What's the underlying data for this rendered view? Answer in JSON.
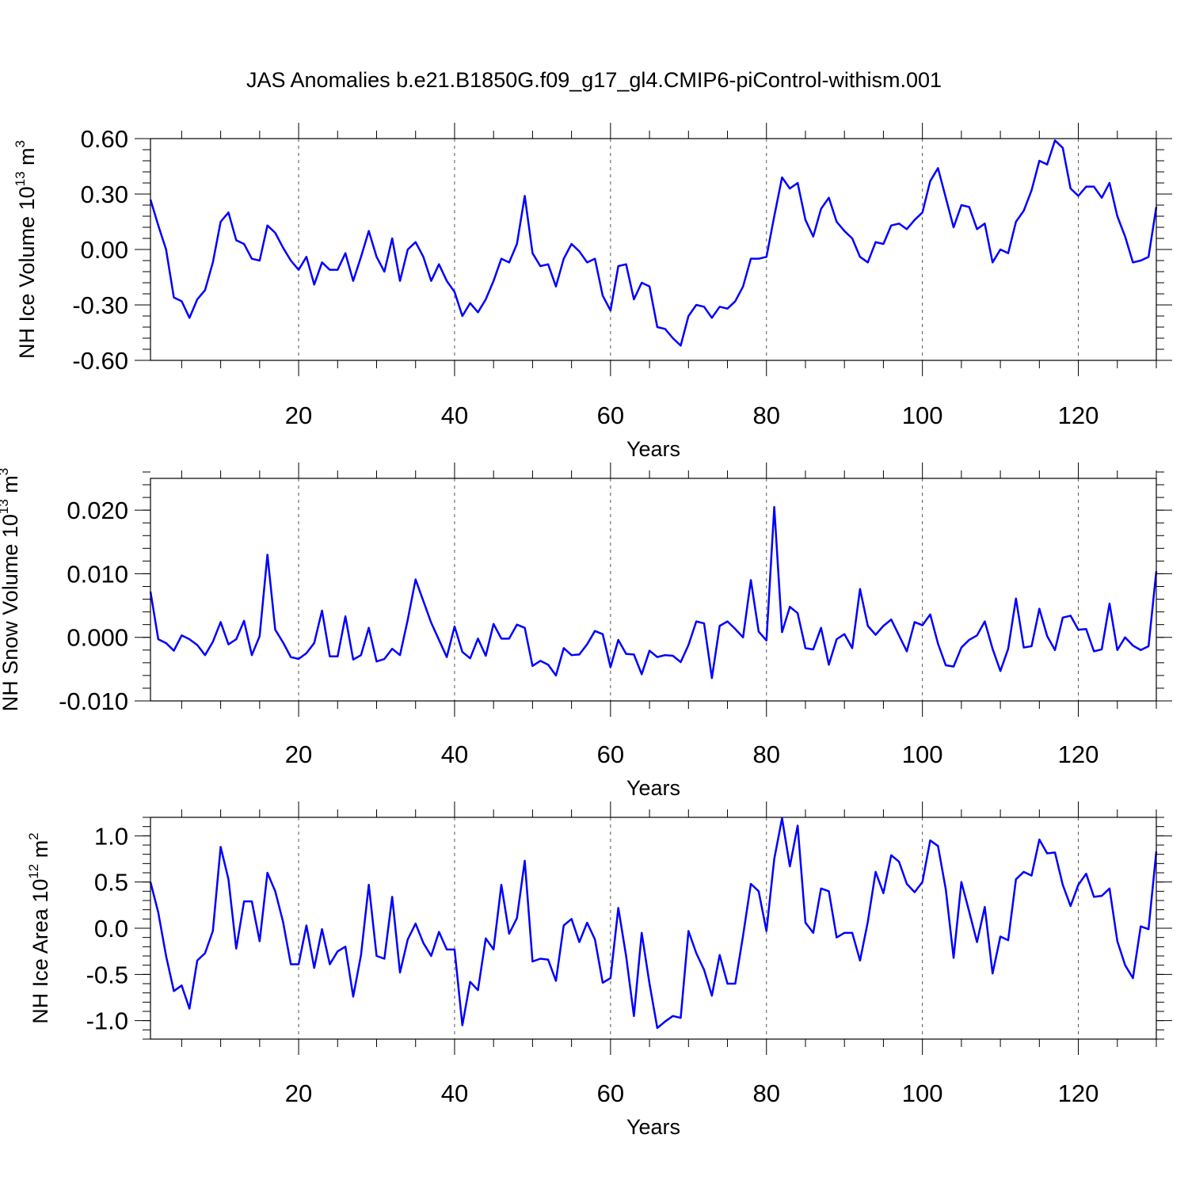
{
  "title": "JAS Anomalies b.e21.B1850G.f09_g17_gl4.CMIP6-piControl-withism.001",
  "line_color": "#0000ff",
  "chart_data": [
    {
      "type": "line",
      "xlabel": "Years",
      "ylabel_text": "NH Ice Volume 10",
      "ylabel_exp": "13",
      "ylabel_unit": " m",
      "ylabel_unit_exp": "3",
      "xlim": [
        1,
        130
      ],
      "ylim": [
        -0.6,
        0.6
      ],
      "x_ticks": [
        20,
        40,
        60,
        80,
        100,
        120
      ],
      "x_tick_labels": [
        "20",
        "40",
        "60",
        "80",
        "100",
        "120"
      ],
      "y_ticks": [
        -0.6,
        -0.3,
        0.0,
        0.3,
        0.6
      ],
      "y_tick_labels": [
        "-0.60",
        "-0.30",
        "0.00",
        "0.30",
        "0.60"
      ],
      "y_minor_step": 0.06,
      "x_start": 1,
      "values": [
        0.27,
        0.13,
        0.0,
        -0.26,
        -0.28,
        -0.37,
        -0.27,
        -0.22,
        -0.07,
        0.15,
        0.2,
        0.05,
        0.03,
        -0.05,
        -0.06,
        0.13,
        0.09,
        0.01,
        -0.06,
        -0.11,
        -0.04,
        -0.19,
        -0.07,
        -0.11,
        -0.11,
        -0.02,
        -0.17,
        -0.04,
        0.1,
        -0.04,
        -0.12,
        0.06,
        -0.17,
        0.0,
        0.04,
        -0.04,
        -0.17,
        -0.08,
        -0.17,
        -0.23,
        -0.36,
        -0.29,
        -0.34,
        -0.27,
        -0.17,
        -0.05,
        -0.07,
        0.03,
        0.29,
        -0.02,
        -0.09,
        -0.08,
        -0.2,
        -0.05,
        0.03,
        -0.01,
        -0.07,
        -0.05,
        -0.25,
        -0.33,
        -0.09,
        -0.08,
        -0.27,
        -0.18,
        -0.2,
        -0.42,
        -0.43,
        -0.48,
        -0.52,
        -0.36,
        -0.3,
        -0.31,
        -0.37,
        -0.31,
        -0.32,
        -0.28,
        -0.2,
        -0.05,
        -0.05,
        -0.04,
        0.18,
        0.39,
        0.33,
        0.36,
        0.16,
        0.07,
        0.22,
        0.28,
        0.15,
        0.1,
        0.06,
        -0.04,
        -0.07,
        0.04,
        0.03,
        0.13,
        0.14,
        0.11,
        0.16,
        0.2,
        0.37,
        0.44,
        0.28,
        0.12,
        0.24,
        0.23,
        0.11,
        0.14,
        -0.07,
        0.0,
        -0.02,
        0.15,
        0.21,
        0.32,
        0.48,
        0.46,
        0.59,
        0.55,
        0.33,
        0.29,
        0.34,
        0.34,
        0.28,
        0.36,
        0.18,
        0.07,
        -0.07,
        -0.06,
        -0.04,
        0.23
      ]
    },
    {
      "type": "line",
      "xlabel": "Years",
      "ylabel_text": "NH Snow Volume 10",
      "ylabel_exp": "13",
      "ylabel_unit": " m",
      "ylabel_unit_exp": "3",
      "xlim": [
        1,
        130
      ],
      "ylim": [
        -0.01,
        0.025
      ],
      "x_ticks": [
        20,
        40,
        60,
        80,
        100,
        120
      ],
      "x_tick_labels": [
        "20",
        "40",
        "60",
        "80",
        "100",
        "120"
      ],
      "y_ticks": [
        -0.01,
        0.0,
        0.01,
        0.02
      ],
      "y_tick_labels": [
        "-0.010",
        "0.000",
        "0.010",
        "0.020"
      ],
      "y_minor_step": 0.002,
      "x_start": 1,
      "values": [
        0.0072,
        -0.0003,
        -0.0009,
        -0.0021,
        0.0003,
        -0.0003,
        -0.0012,
        -0.0028,
        -0.0007,
        0.0024,
        -0.0011,
        -0.0003,
        0.0026,
        -0.0028,
        0.0002,
        0.013,
        0.0012,
        -0.0008,
        -0.0031,
        -0.0034,
        -0.0025,
        -0.0009,
        0.0042,
        -0.003,
        -0.003,
        0.0033,
        -0.0035,
        -0.0028,
        0.0015,
        -0.0038,
        -0.0034,
        -0.0018,
        -0.0028,
        0.0028,
        0.0091,
        0.0057,
        0.0023,
        -0.0004,
        -0.0031,
        0.0017,
        -0.0023,
        -0.0033,
        -0.0002,
        -0.0029,
        0.0021,
        -0.0002,
        -0.0002,
        0.002,
        0.0015,
        -0.0045,
        -0.0037,
        -0.0043,
        -0.006,
        -0.0017,
        -0.0028,
        -0.0027,
        -0.0011,
        0.001,
        0.0005,
        -0.0047,
        -0.0004,
        -0.0026,
        -0.0027,
        -0.0058,
        -0.0021,
        -0.0031,
        -0.0028,
        -0.0029,
        -0.0039,
        -0.0012,
        0.0025,
        0.0022,
        -0.0064,
        0.0018,
        0.0025,
        0.0013,
        0.0,
        0.009,
        0.0009,
        -0.0005,
        0.0205,
        0.0008,
        0.0048,
        0.0038,
        -0.0017,
        -0.0019,
        0.0015,
        -0.0043,
        -0.0003,
        0.0005,
        -0.0017,
        0.0076,
        0.0018,
        0.0004,
        0.0018,
        0.0028,
        0.0003,
        -0.0022,
        0.0024,
        0.0019,
        0.0036,
        -0.001,
        -0.0044,
        -0.0046,
        -0.0016,
        -0.0004,
        0.0003,
        0.0025,
        -0.0018,
        -0.0053,
        -0.0018,
        0.0061,
        -0.0016,
        -0.0014,
        0.0045,
        0.0002,
        -0.002,
        0.0031,
        0.0034,
        0.0012,
        0.0013,
        -0.0022,
        -0.0019,
        0.0053,
        -0.002,
        0.0,
        -0.0013,
        -0.002,
        -0.0014,
        0.0104
      ]
    },
    {
      "type": "line",
      "xlabel": "Years",
      "ylabel_text": "NH Ice Area 10",
      "ylabel_exp": "12",
      "ylabel_unit": " m",
      "ylabel_unit_exp": "2",
      "xlim": [
        1,
        130
      ],
      "ylim": [
        -1.2,
        1.2
      ],
      "x_ticks": [
        20,
        40,
        60,
        80,
        100,
        120
      ],
      "x_tick_labels": [
        "20",
        "40",
        "60",
        "80",
        "100",
        "120"
      ],
      "y_ticks": [
        -1.0,
        -0.5,
        0.0,
        0.5,
        1.0
      ],
      "y_tick_labels": [
        "-1.0",
        "-0.5",
        "0.0",
        "0.5",
        "1.0"
      ],
      "y_minor_step": 0.1,
      "x_start": 1,
      "values": [
        0.5,
        0.17,
        -0.3,
        -0.68,
        -0.62,
        -0.87,
        -0.35,
        -0.27,
        -0.03,
        0.88,
        0.53,
        -0.22,
        0.29,
        0.29,
        -0.14,
        0.6,
        0.4,
        0.07,
        -0.39,
        -0.39,
        0.03,
        -0.43,
        -0.01,
        -0.39,
        -0.25,
        -0.2,
        -0.74,
        -0.29,
        0.47,
        -0.3,
        -0.33,
        0.34,
        -0.48,
        -0.12,
        0.05,
        -0.16,
        -0.3,
        -0.04,
        -0.23,
        -0.23,
        -1.05,
        -0.58,
        -0.67,
        -0.11,
        -0.23,
        0.47,
        -0.06,
        0.11,
        0.73,
        -0.36,
        -0.33,
        -0.34,
        -0.57,
        0.03,
        0.1,
        -0.15,
        0.06,
        -0.12,
        -0.59,
        -0.54,
        0.22,
        -0.3,
        -0.95,
        -0.05,
        -0.6,
        -1.08,
        -1.01,
        -0.95,
        -0.97,
        -0.03,
        -0.27,
        -0.45,
        -0.73,
        -0.29,
        -0.6,
        -0.6,
        -0.08,
        0.48,
        0.4,
        -0.03,
        0.75,
        1.19,
        0.67,
        1.11,
        0.06,
        -0.05,
        0.43,
        0.4,
        -0.1,
        -0.05,
        -0.05,
        -0.35,
        0.07,
        0.61,
        0.38,
        0.79,
        0.72,
        0.48,
        0.39,
        0.5,
        0.95,
        0.89,
        0.42,
        -0.32,
        0.5,
        0.18,
        -0.15,
        0.23,
        -0.49,
        -0.09,
        -0.13,
        0.53,
        0.61,
        0.57,
        0.96,
        0.81,
        0.82,
        0.47,
        0.24,
        0.47,
        0.59,
        0.34,
        0.35,
        0.43,
        -0.14,
        -0.4,
        -0.54,
        0.02,
        -0.01,
        0.83
      ]
    }
  ]
}
